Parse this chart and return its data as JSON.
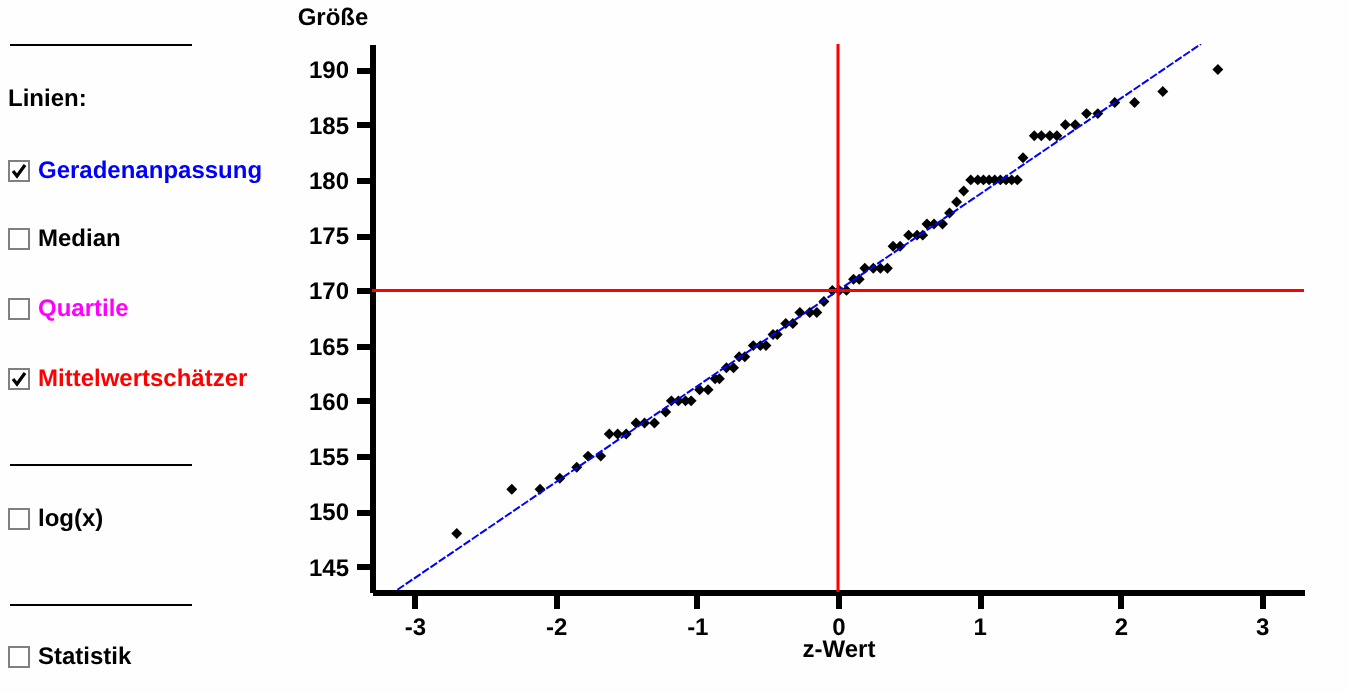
{
  "chart_data": {
    "type": "scatter",
    "xlabel": "z-Wert",
    "ylabel": "Größe",
    "annotations": [
      "Linien:",
      "Geradenanpassung",
      "Median",
      "Quartile",
      "Mittelwertschätzer",
      "log(x)",
      "Statistik"
    ],
    "xlim": [
      -3.3,
      3.3
    ],
    "xticks": [
      -3,
      -2,
      -1,
      0,
      1,
      2,
      3
    ],
    "ylim": [
      142.7,
      192.3
    ],
    "yticks": [
      145,
      150,
      155,
      160,
      165,
      170,
      175,
      180,
      185,
      190
    ],
    "marker": "diamond",
    "series": [
      {
        "type": "scatter",
        "color": "#000000",
        "x": [
          -2.7,
          -2.31,
          -2.11,
          -1.97,
          -1.85,
          -1.77,
          -1.68,
          -1.62,
          -1.56,
          -1.5,
          -1.43,
          -1.37,
          -1.3,
          -1.22,
          -1.18,
          -1.13,
          -1.08,
          -1.04,
          -0.98,
          -0.92,
          -0.87,
          -0.84,
          -0.79,
          -0.74,
          -0.7,
          -0.66,
          -0.6,
          -0.55,
          -0.51,
          -0.46,
          -0.43,
          -0.37,
          -0.32,
          -0.27,
          -0.2,
          -0.15,
          -0.1,
          -0.04,
          0.01,
          0.06,
          0.11,
          0.15,
          0.19,
          0.25,
          0.3,
          0.35,
          0.39,
          0.44,
          0.5,
          0.56,
          0.6,
          0.63,
          0.68,
          0.74,
          0.79,
          0.84,
          0.89,
          0.94,
          0.99,
          1.03,
          1.07,
          1.11,
          1.15,
          1.19,
          1.23,
          1.27,
          1.31,
          1.39,
          1.44,
          1.5,
          1.55,
          1.61,
          1.68,
          1.76,
          1.84,
          1.96,
          2.1,
          2.3,
          2.69
        ],
        "values": [
          148,
          152,
          152,
          153,
          154,
          155,
          155,
          157,
          157,
          157,
          158,
          158,
          158,
          159,
          160,
          160,
          160,
          160,
          161,
          161,
          162,
          162,
          163,
          163,
          164,
          164,
          165,
          165,
          165,
          166,
          166,
          167,
          167,
          168,
          168,
          168,
          169,
          170,
          170,
          170,
          171,
          171,
          172,
          172,
          172,
          172,
          174,
          174,
          175,
          175,
          175,
          176,
          176,
          176,
          177,
          178,
          179,
          180,
          180,
          180,
          180,
          180,
          180,
          180,
          180,
          180,
          182,
          184,
          184,
          184,
          184,
          185,
          185,
          186,
          186,
          187,
          187,
          188,
          190
        ]
      },
      {
        "type": "line",
        "color": "#0000ff",
        "marker": "none",
        "line_style": "dashed",
        "x": [
          -3.12,
          2.57
        ],
        "values": [
          142.9,
          192.3
        ]
      }
    ],
    "ref_lines": [
      {
        "axis": "x",
        "value": 0,
        "color": "#ff0000"
      },
      {
        "axis": "y",
        "value": 170,
        "color": "#ff0000"
      }
    ]
  }
}
